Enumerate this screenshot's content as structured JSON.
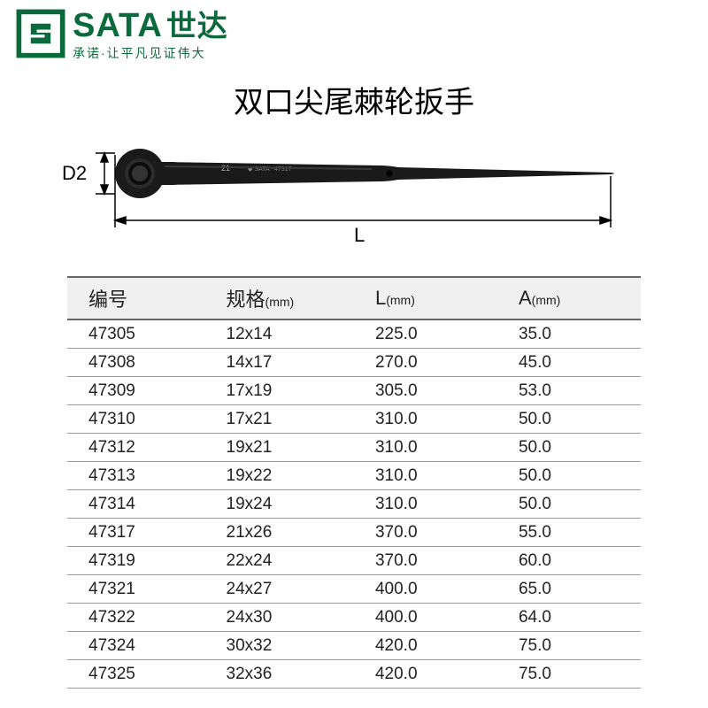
{
  "brand": {
    "name_en": "SATA",
    "name_cn": "世达",
    "tagline": "承诺·让平凡见证伟大",
    "logo_color": "#0a6a3c"
  },
  "title": "双口尖尾棘轮扳手",
  "diagram": {
    "d2_label": "D2",
    "l_label": "L",
    "wrench_color": "#1a1a1a",
    "arrow_color": "#000000",
    "marking_text": "21",
    "marking_brand": "SATA"
  },
  "table": {
    "header_bg": "#f0f0f0",
    "border_color": "#666666",
    "row_border_color": "#999999",
    "columns": [
      {
        "label": "编号",
        "unit": ""
      },
      {
        "label": "规格",
        "unit": "(mm)"
      },
      {
        "label": "L",
        "unit": "(mm)"
      },
      {
        "label": "A",
        "unit": "(mm)"
      }
    ],
    "rows": [
      [
        "47305",
        "12x14",
        "225.0",
        "35.0"
      ],
      [
        "47308",
        "14x17",
        "270.0",
        "45.0"
      ],
      [
        "47309",
        "17x19",
        "305.0",
        "53.0"
      ],
      [
        "47310",
        "17x21",
        "310.0",
        "50.0"
      ],
      [
        "47312",
        "19x21",
        "310.0",
        "50.0"
      ],
      [
        "47313",
        "19x22",
        "310.0",
        "50.0"
      ],
      [
        "47314",
        "19x24",
        "310.0",
        "50.0"
      ],
      [
        "47317",
        "21x26",
        "370.0",
        "55.0"
      ],
      [
        "47319",
        "22x24",
        "370.0",
        "60.0"
      ],
      [
        "47321",
        "24x27",
        "400.0",
        "65.0"
      ],
      [
        "47322",
        "24x30",
        "400.0",
        "64.0"
      ],
      [
        "47324",
        "30x32",
        "420.0",
        "75.0"
      ],
      [
        "47325",
        "32x36",
        "420.0",
        "75.0"
      ]
    ]
  }
}
